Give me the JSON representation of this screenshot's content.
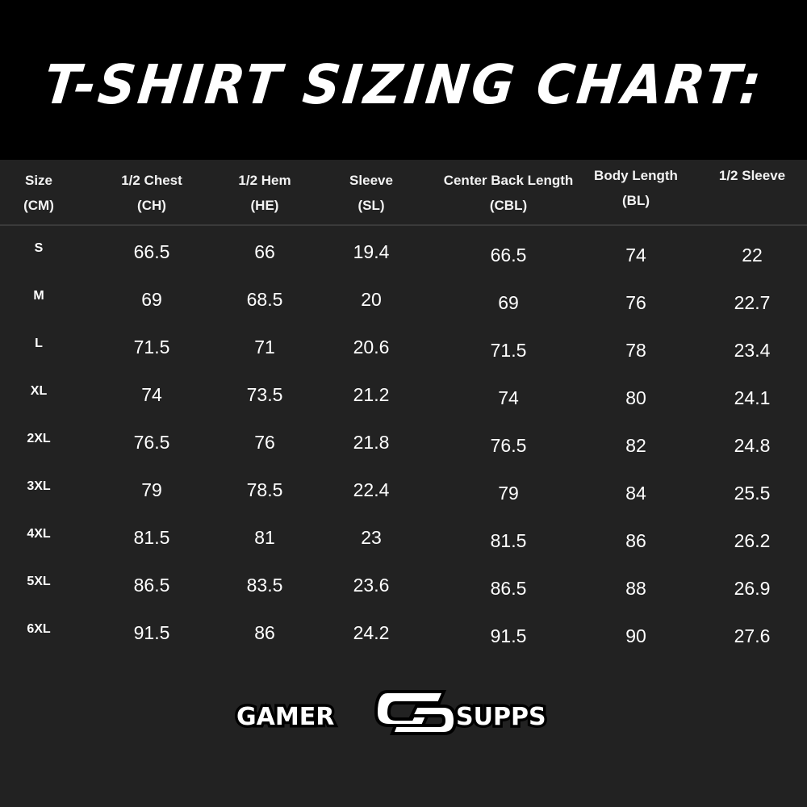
{
  "title": "T-SHIRT SIZING CHART:",
  "columns": [
    {
      "line1": "Size",
      "line2": "(CM)"
    },
    {
      "line1": "1/2 Chest",
      "line2": "(CH)"
    },
    {
      "line1": "1/2 Hem",
      "line2": "(HE)"
    },
    {
      "line1": "Sleeve",
      "line2": "(SL)"
    },
    {
      "line1": "Center Back Length",
      "line2": "(CBL)"
    },
    {
      "line1": "Body Length",
      "line2": "(BL)"
    },
    {
      "line1": "1/2 Sleeve",
      "line2": ""
    }
  ],
  "rows": [
    [
      "S",
      "66.5",
      "66",
      "19.4",
      "66.5",
      "74",
      "22"
    ],
    [
      "M",
      "69",
      "68.5",
      "20",
      "69",
      "76",
      "22.7"
    ],
    [
      "L",
      "71.5",
      "71",
      "20.6",
      "71.5",
      "78",
      "23.4"
    ],
    [
      "XL",
      "74",
      "73.5",
      "21.2",
      "74",
      "80",
      "24.1"
    ],
    [
      "2XL",
      "76.5",
      "76",
      "21.8",
      "76.5",
      "82",
      "24.8"
    ],
    [
      "3XL",
      "79",
      "78.5",
      "22.4",
      "79",
      "84",
      "25.5"
    ],
    [
      "4XL",
      "81.5",
      "81",
      "23",
      "81.5",
      "86",
      "26.2"
    ],
    [
      "5XL",
      "86.5",
      "83.5",
      "23.6",
      "86.5",
      "88",
      "26.9"
    ],
    [
      "6XL",
      "91.5",
      "86",
      "24.2",
      "91.5",
      "90",
      "27.6"
    ]
  ],
  "logo": {
    "left": "GAMER",
    "right": "SUPPS",
    "mark": "GS"
  },
  "colors": {
    "banner": "#000000",
    "background": "#222222",
    "text": "#ffffff"
  }
}
